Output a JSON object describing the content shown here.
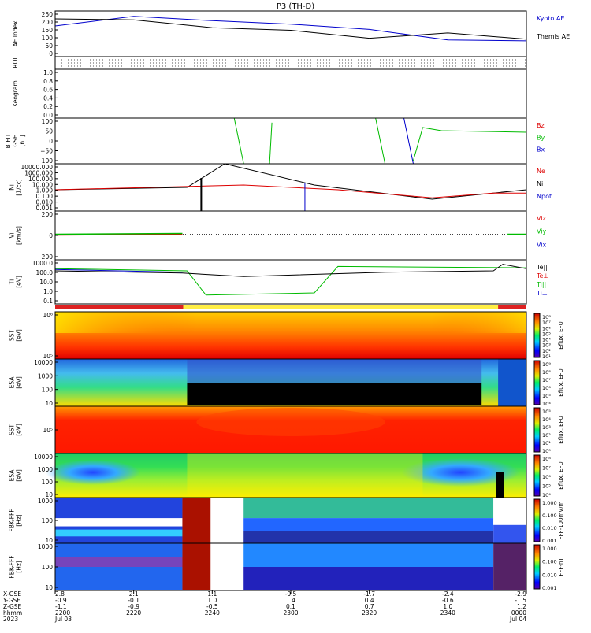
{
  "title": "P3 (TH-D)",
  "colors": {
    "kyoto": "#0000cc",
    "themis": "#000000",
    "red": "#dd0000",
    "green": "#00bb00",
    "blue": "#0000cc",
    "black": "#000000"
  },
  "panels": [
    {
      "id": "ae",
      "ylabel": [
        "AE Index"
      ],
      "ticks": [
        "250",
        "200",
        "150",
        "100",
        "50",
        "0"
      ],
      "legend": [
        {
          "text": "Kyoto AE",
          "color": "kyoto"
        },
        {
          "text": "Themis AE",
          "color": "themis"
        }
      ]
    },
    {
      "id": "roi",
      "ylabel": [
        "ROI"
      ],
      "ticks": [],
      "legend": []
    },
    {
      "id": "keogram",
      "ylabel": [
        "Keogram"
      ],
      "ticks": [
        "1.0",
        "0.8",
        "0.6",
        "0.4",
        "0.2",
        "0.0"
      ],
      "legend": []
    },
    {
      "id": "bfit",
      "ylabel": [
        "B FIT",
        "GSE",
        "[nT]"
      ],
      "ticks": [
        "100",
        "50",
        "0",
        "−50",
        "−100"
      ],
      "legend": [
        {
          "text": "Bz",
          "color": "red"
        },
        {
          "text": "By",
          "color": "green"
        },
        {
          "text": "Bx",
          "color": "blue"
        }
      ]
    },
    {
      "id": "ni",
      "ylabel": [
        "Ni",
        "[1/cc]"
      ],
      "ticks": [
        "10000.000",
        "1000.000",
        "100.000",
        "10.000",
        "1.000",
        "0.100",
        "0.010",
        "0.001"
      ],
      "legend": [
        {
          "text": "Ne",
          "color": "red"
        },
        {
          "text": "Ni",
          "color": "black"
        },
        {
          "text": "Npot",
          "color": "blue"
        }
      ]
    },
    {
      "id": "vi",
      "ylabel": [
        "Vi",
        "[km/s]"
      ],
      "ticks": [
        "200",
        "0",
        "−200"
      ],
      "legend": [
        {
          "text": "Viz",
          "color": "red"
        },
        {
          "text": "Viy",
          "color": "green"
        },
        {
          "text": "Vix",
          "color": "blue"
        }
      ]
    },
    {
      "id": "ti",
      "ylabel": [
        "Ti",
        "[eV]"
      ],
      "ticks": [
        "1000.0",
        "100.0",
        "10.0",
        "1.0",
        "0.1"
      ],
      "legend": [
        {
          "text": "Te||",
          "color": "black"
        },
        {
          "text": "Te⊥",
          "color": "red"
        },
        {
          "text": "Ti||",
          "color": "green"
        },
        {
          "text": "Ti⊥",
          "color": "blue"
        }
      ]
    },
    {
      "id": "sst_e",
      "ylabel": [
        "SST",
        "[eV]"
      ],
      "ticks": [
        "10⁶",
        "10⁵"
      ],
      "legend": [],
      "cb": {
        "label": "Eflux, EFU",
        "ticks": [
          "10⁸",
          "10⁷",
          "10⁶",
          "10⁵",
          "10⁴",
          "10³",
          "10²",
          "10¹"
        ]
      }
    },
    {
      "id": "esa_e",
      "ylabel": [
        "ESA",
        "[eV]"
      ],
      "ticks": [
        "10000",
        "1000",
        "100",
        "10"
      ],
      "legend": [],
      "cb": {
        "label": "Eflux, EFU",
        "ticks": [
          "10⁹",
          "10⁸",
          "10⁷",
          "10⁶",
          "10⁵",
          "10⁴"
        ]
      }
    },
    {
      "id": "sst_i",
      "ylabel": [
        "SST",
        "[eV]"
      ],
      "ticks": [
        "10⁵"
      ],
      "legend": [],
      "cb": {
        "label": "Eflux, EFU",
        "ticks": [
          "10⁵",
          "10⁴",
          "10³",
          "10²",
          "10¹",
          "10⁰"
        ]
      }
    },
    {
      "id": "esa_i",
      "ylabel": [
        "ESA",
        "[eV]"
      ],
      "ticks": [
        "10000",
        "1000",
        "100",
        "10"
      ],
      "legend": [],
      "cb": {
        "label": "Eflux, EFU",
        "ticks": [
          "10⁸",
          "10⁷",
          "10⁶",
          "10⁵",
          "10⁴"
        ]
      }
    },
    {
      "id": "fbk_fff",
      "ylabel": [
        "FBK-FFF",
        "[Hz]"
      ],
      "ticks": [
        "1000",
        "100",
        "10"
      ],
      "legend": [],
      "cb": {
        "label": "FFF-100mV/m",
        "ticks": [
          "1.000",
          "0.100",
          "0.010",
          "0.001"
        ]
      }
    },
    {
      "id": "fbk_ff2",
      "ylabel": [
        "FBK-FFF",
        "[Hz]"
      ],
      "ticks": [
        "1000",
        "100",
        "10"
      ],
      "legend": [],
      "cb": {
        "label": "FFF-nT",
        "ticks": [
          "1.000",
          "0.100",
          "0.010",
          "0.001"
        ]
      }
    }
  ],
  "xaxis": {
    "rowlabels": [
      "X-GSE",
      "Y-GSE",
      "Z-GSE",
      "hhmm",
      "2023"
    ],
    "columns": [
      [
        "2.8",
        "-0.9",
        "-1.1",
        "2200",
        "Jul 03"
      ],
      [
        "2.1",
        "-0.1",
        "-0.9",
        "2220",
        ""
      ],
      [
        "1.1",
        "1.0",
        "-0.5",
        "2240",
        ""
      ],
      [
        "-0.5",
        "1.4",
        "0.1",
        "2300",
        ""
      ],
      [
        "-1.7",
        "0.4",
        "0.7",
        "2320",
        ""
      ],
      [
        "-2.4",
        "-0.6",
        "1.0",
        "2340",
        ""
      ],
      [
        "-2.9",
        "-1.5",
        "1.2",
        "0000",
        "Jul 04"
      ]
    ]
  },
  "chart_data": {
    "type": "line",
    "title": "P3 (TH-D)",
    "x": [
      "2200",
      "2220",
      "2240",
      "2300",
      "2320",
      "2340",
      "0000"
    ],
    "series": [
      {
        "name": "Kyoto AE",
        "values": [
          175,
          230,
          205,
          185,
          155,
          95,
          90
        ]
      },
      {
        "name": "Themis AE",
        "values": [
          215,
          210,
          165,
          150,
          105,
          135,
          100
        ]
      }
    ],
    "ylabel": "AE Index",
    "ylim": [
      0,
      260
    ]
  }
}
